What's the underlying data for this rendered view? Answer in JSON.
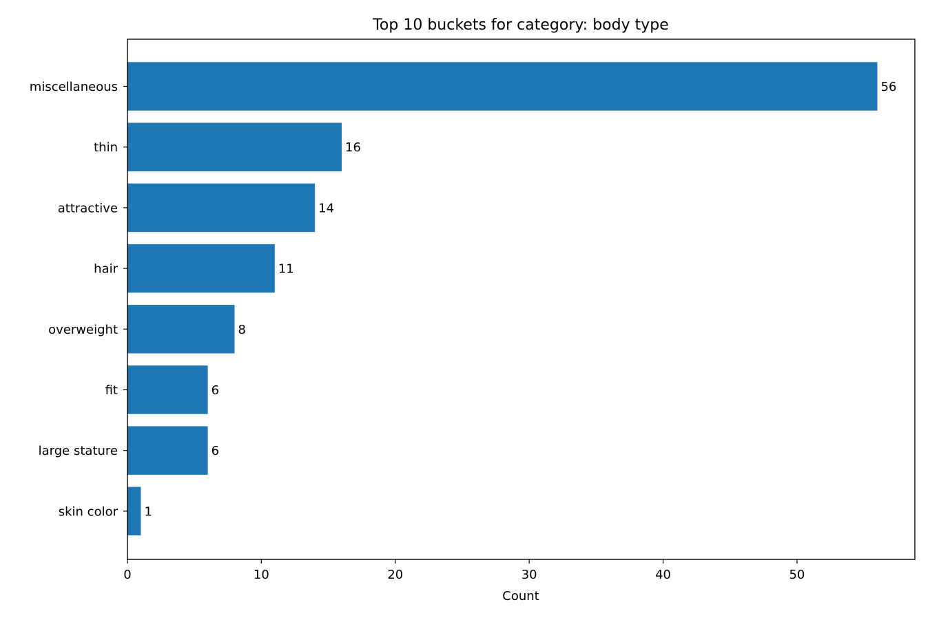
{
  "chart_data": {
    "type": "bar",
    "orientation": "horizontal",
    "title": "Top 10 buckets for category: body type",
    "xlabel": "Count",
    "ylabel": "",
    "categories": [
      "miscellaneous",
      "thin",
      "attractive",
      "hair",
      "overweight",
      "fit",
      "large stature",
      "skin color"
    ],
    "values": [
      56,
      16,
      14,
      11,
      8,
      6,
      6,
      1
    ],
    "xlim": [
      0,
      58.8
    ],
    "xticks": [
      0,
      10,
      20,
      30,
      40,
      50
    ],
    "grid": false,
    "bar_color": "#1f77b4",
    "data_labels": true
  }
}
